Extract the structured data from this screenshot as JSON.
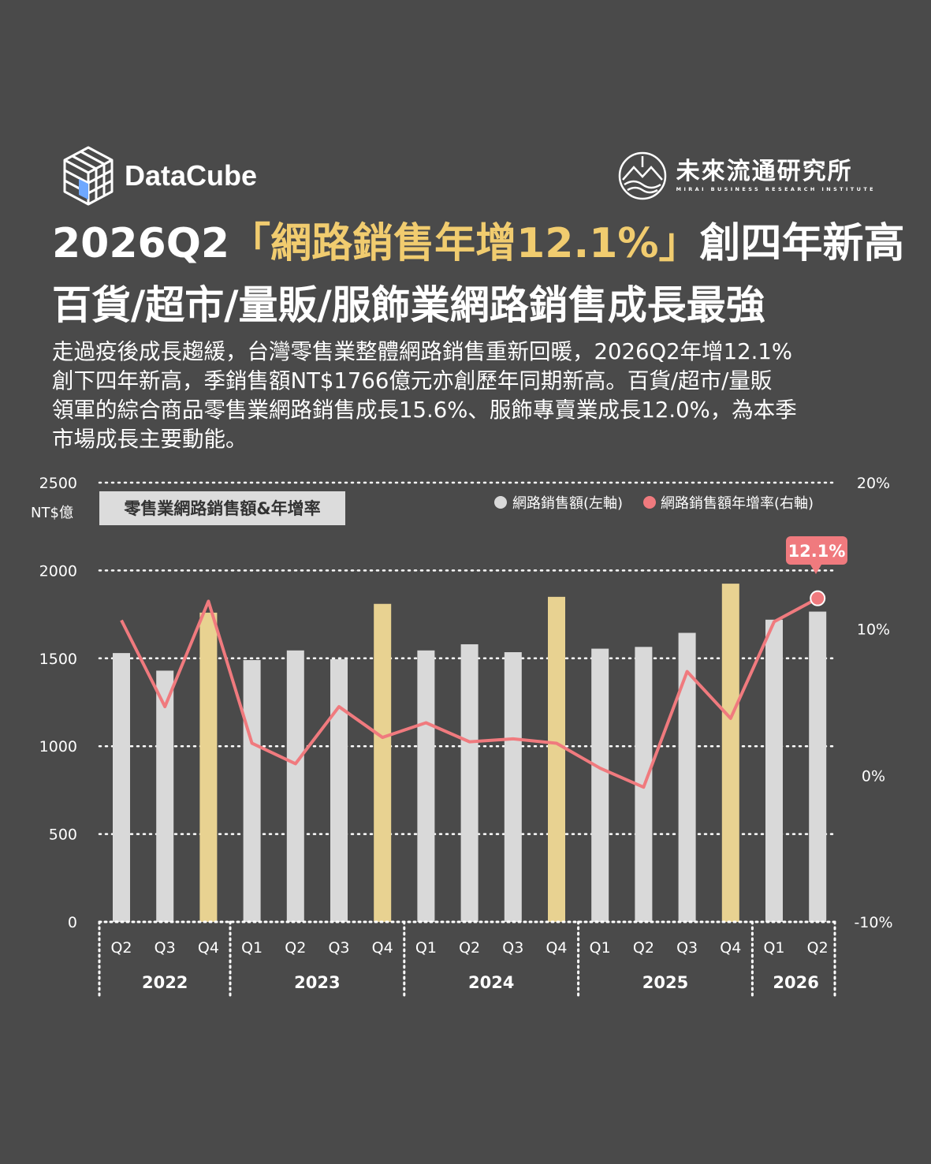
{
  "brand": {
    "left_name": "DataCube",
    "left_logo_icon": "cube-grid-icon",
    "right_logo_icon": "mountain-circle-icon",
    "right_name": "未來流通研究所",
    "right_sub": "MIRAI BUSINESS RESEARCH INSTITUTE"
  },
  "headline": {
    "part1": "2026Q2",
    "highlight": "「網路銷售年增12.1%」",
    "part2": "創四年新高",
    "line2": "百貨/超市/量販/服飾業網路銷售成長最強"
  },
  "description": [
    "走過疫後成長趨緩，台灣零售業整體網路銷售重新回暖，2026Q2年增12.1%",
    "創下四年新高，季銷售額NT$1766億元亦創歷年同期新高。百貨/超市/量販",
    "領軍的綜合商品零售業網路銷售成長15.6%、服飾專賣業成長12.0%，為本季",
    "市場成長主要動能。"
  ],
  "colors": {
    "background": "#4a4a4a",
    "bar": "#d9d9d9",
    "bar_q4": "#e8d291",
    "line": "#f07a7e",
    "headline_highlight": "#f1cc6f"
  },
  "chart_data": {
    "type": "bar",
    "title": "零售業網路銷售額&年增率",
    "unit_left": "NT$億",
    "ylim": [
      0,
      2500
    ],
    "y2lim": [
      -10,
      20
    ],
    "yticks": [
      "0",
      "500",
      "1000",
      "1500",
      "2000",
      "2500"
    ],
    "y2ticks": [
      "-10%",
      "0%",
      "10%",
      "20%"
    ],
    "grid": "dotted",
    "legend_position": "top-right",
    "categories": [
      "Q2",
      "Q3",
      "Q4",
      "Q1",
      "Q2",
      "Q3",
      "Q4",
      "Q1",
      "Q2",
      "Q3",
      "Q4",
      "Q1",
      "Q2",
      "Q3",
      "Q4",
      "Q1",
      "Q2"
    ],
    "years": [
      {
        "label": "2022",
        "count": 3
      },
      {
        "label": "2023",
        "count": 4
      },
      {
        "label": "2024",
        "count": 4
      },
      {
        "label": "2025",
        "count": 4
      },
      {
        "label": "2026",
        "count": 2
      }
    ],
    "highlight_quarter": "Q4",
    "series": [
      {
        "name": "網路銷售額(左軸)",
        "axis": "left",
        "type": "bar",
        "values": [
          1530,
          1430,
          1760,
          1490,
          1545,
          1495,
          1810,
          1545,
          1580,
          1535,
          1850,
          1555,
          1565,
          1645,
          1925,
          1720,
          1766
        ]
      },
      {
        "name": "網路銷售額年增率(右軸)",
        "axis": "right",
        "type": "line",
        "values": [
          10.6,
          4.7,
          11.9,
          2.2,
          0.8,
          4.7,
          2.6,
          3.6,
          2.3,
          2.5,
          2.2,
          0.5,
          -0.8,
          7.1,
          3.9,
          10.5,
          12.1
        ]
      }
    ],
    "annotation": "12.1%"
  }
}
